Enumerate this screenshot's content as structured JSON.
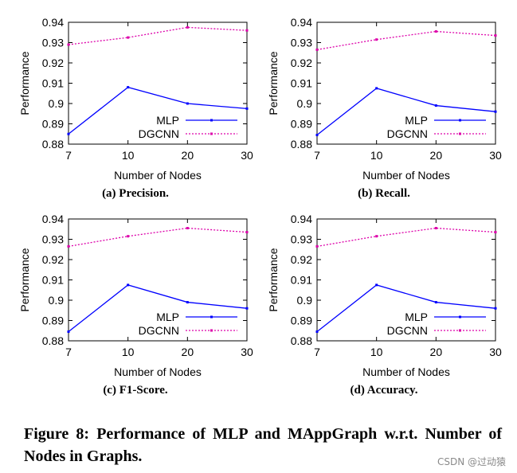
{
  "chart_data": [
    {
      "type": "line",
      "caption": "(a) Precision.",
      "ylabel": "Performance",
      "xlabel": "Number of Nodes",
      "categories": [
        "7",
        "10",
        "20",
        "30"
      ],
      "y_ticks": [
        "0.88",
        "0.89",
        "0.9",
        "0.91",
        "0.92",
        "0.93",
        "0.94"
      ],
      "ylim": [
        0.88,
        0.94
      ],
      "legend_position": "bottom-right",
      "series": [
        {
          "name": "MLP",
          "color": "#0000ff",
          "style": "solid",
          "values": [
            0.885,
            0.908,
            0.9,
            0.8975
          ]
        },
        {
          "name": "DGCNN",
          "color": "#dd00aa",
          "style": "dotted",
          "values": [
            0.929,
            0.9325,
            0.9375,
            0.936
          ]
        }
      ]
    },
    {
      "type": "line",
      "caption": "(b) Recall.",
      "ylabel": "Performance",
      "xlabel": "Number of Nodes",
      "categories": [
        "7",
        "10",
        "20",
        "30"
      ],
      "y_ticks": [
        "0.88",
        "0.89",
        "0.9",
        "0.91",
        "0.92",
        "0.93",
        "0.94"
      ],
      "ylim": [
        0.88,
        0.94
      ],
      "legend_position": "bottom-right",
      "series": [
        {
          "name": "MLP",
          "color": "#0000ff",
          "style": "solid",
          "values": [
            0.8845,
            0.9075,
            0.899,
            0.896
          ]
        },
        {
          "name": "DGCNN",
          "color": "#dd00aa",
          "style": "dotted",
          "values": [
            0.9265,
            0.9315,
            0.9355,
            0.9335
          ]
        }
      ]
    },
    {
      "type": "line",
      "caption": "(c) F1-Score.",
      "ylabel": "Performance",
      "xlabel": "Number of Nodes",
      "categories": [
        "7",
        "10",
        "20",
        "30"
      ],
      "y_ticks": [
        "0.88",
        "0.89",
        "0.9",
        "0.91",
        "0.92",
        "0.93",
        "0.94"
      ],
      "ylim": [
        0.88,
        0.94
      ],
      "legend_position": "bottom-right",
      "series": [
        {
          "name": "MLP",
          "color": "#0000ff",
          "style": "solid",
          "values": [
            0.8845,
            0.9075,
            0.899,
            0.896
          ]
        },
        {
          "name": "DGCNN",
          "color": "#dd00aa",
          "style": "dotted",
          "values": [
            0.9265,
            0.9315,
            0.9355,
            0.9335
          ]
        }
      ]
    },
    {
      "type": "line",
      "caption": "(d) Accuracy.",
      "ylabel": "Performance",
      "xlabel": "Number of Nodes",
      "categories": [
        "7",
        "10",
        "20",
        "30"
      ],
      "y_ticks": [
        "0.88",
        "0.89",
        "0.9",
        "0.91",
        "0.92",
        "0.93",
        "0.94"
      ],
      "ylim": [
        0.88,
        0.94
      ],
      "legend_position": "bottom-right",
      "series": [
        {
          "name": "MLP",
          "color": "#0000ff",
          "style": "solid",
          "values": [
            0.8845,
            0.9075,
            0.899,
            0.896
          ]
        },
        {
          "name": "DGCNN",
          "color": "#dd00aa",
          "style": "dotted",
          "values": [
            0.9265,
            0.9315,
            0.9355,
            0.9335
          ]
        }
      ]
    }
  ],
  "figure_caption": "Figure 8: Performance of MLP and MAppGraph w.r.t. Number of Nodes in Graphs.",
  "watermark": "CSDN @过动猿"
}
